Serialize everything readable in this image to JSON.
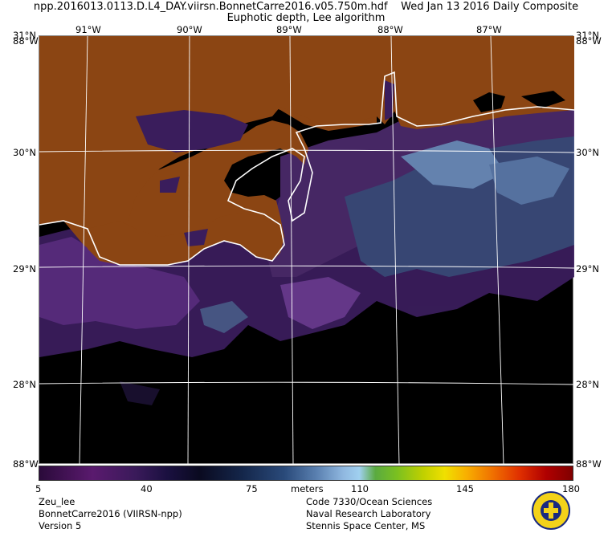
{
  "title": {
    "line1": "npp.2016013.0113.D.L4_DAY.viirsn.BonnetCarre2016.v05.750m.hdf    Wed Jan 13 2016 Daily Composite",
    "line2": "Euphotic depth, Lee algorithm"
  },
  "map": {
    "top_lon_labels": [
      "91°W",
      "90°W",
      "89°W",
      "88°W",
      "87°W"
    ],
    "left_lat_labels": [
      "31°N",
      "30°N",
      "29°N",
      "28°N"
    ],
    "right_lat_labels": [
      "31°N",
      "30°N",
      "29°N",
      "28°N"
    ],
    "corner_top_left": "31°N",
    "corner_top_right": "31°N",
    "corner_top_left_overlay": "88°W",
    "corner_top_right_overlay": "88°W",
    "corner_bottom_left": "88°W",
    "corner_bottom_right": "88°W",
    "colors": {
      "land": "#8b4513",
      "water_nodata": "#000000",
      "coastline": "#ffffff",
      "grid": "#ffffff"
    }
  },
  "colorbar": {
    "ticks": [
      "5",
      "40",
      "75",
      "110",
      "145",
      "180"
    ],
    "units": "meters"
  },
  "footer": {
    "left": [
      "Zeu_lee",
      "BonnetCarre2016 (VIIRSN-npp)",
      "Version 5"
    ],
    "right": [
      "Code 7330/Ocean Sciences",
      "Naval Research Laboratory",
      "Stennis Space Center, MS"
    ],
    "seal_icon": "nrl-seal-icon"
  }
}
